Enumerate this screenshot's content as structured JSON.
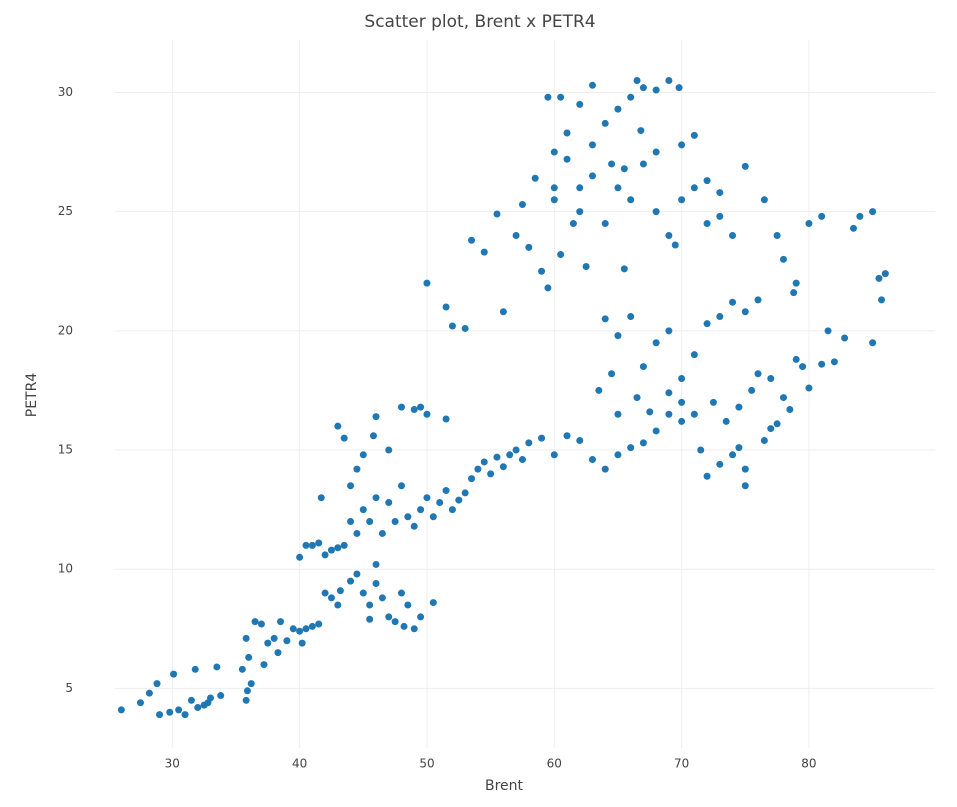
{
  "chart_data": {
    "type": "scatter",
    "title": "Scatter plot, Brent x PETR4",
    "x_label": "Brent",
    "y_label": "PETR4",
    "color": "#1f77b4",
    "grid": true,
    "xlim": [
      25.5,
      89.9
    ],
    "ylim": [
      2.5,
      32.2
    ],
    "xticks": [
      30,
      40,
      50,
      60,
      70,
      80
    ],
    "yticks": [
      5,
      10,
      15,
      20,
      25,
      30
    ],
    "x": [
      26,
      27.5,
      28.2,
      28.8,
      29,
      29.8,
      30.1,
      30.5,
      31,
      31.5,
      32,
      32.5,
      33,
      33.5,
      31.8,
      32.8,
      33.8,
      35.8,
      35.9,
      36.2,
      35.5,
      36,
      35.8,
      36.5,
      37,
      37.5,
      38,
      38.5,
      39,
      39.5,
      40,
      40.5,
      41,
      41.5,
      40.2,
      38.3,
      37.2,
      40,
      40.5,
      41,
      41.5,
      41.7,
      42,
      42.5,
      43,
      43.5,
      42,
      42.5,
      43,
      43.2,
      44,
      44.5,
      45,
      45.5,
      46,
      46.5,
      47,
      47.5,
      48,
      48.5,
      49,
      49.5,
      50.5,
      46,
      45.5,
      48.2,
      44,
      44.5,
      45,
      45.5,
      46,
      46.5,
      47,
      47.5,
      48,
      48.5,
      49,
      49.5,
      50,
      50.5,
      51,
      51.5,
      52,
      52.5,
      53,
      53.5,
      54,
      54.5,
      55,
      55.5,
      56,
      56.5,
      57,
      57.5,
      58,
      59,
      60,
      61,
      62,
      63,
      64,
      65,
      66,
      67,
      68,
      69,
      70,
      43,
      43.5,
      44,
      44.5,
      45,
      46,
      47,
      48,
      49,
      49.5,
      50,
      51.5,
      45.8,
      50,
      51.5,
      52,
      53,
      53.5,
      54.5,
      55.5,
      56,
      57,
      58,
      59,
      59.5,
      60,
      61,
      62,
      63,
      64,
      65,
      66,
      67,
      68,
      69,
      70,
      71,
      72,
      73,
      74,
      75,
      76.5,
      77.5,
      78,
      79,
      80,
      81,
      83.5,
      84,
      85,
      85.5,
      86,
      85.7,
      59.5,
      60.5,
      62,
      63,
      64,
      65,
      66,
      66.5,
      67,
      68,
      69,
      69.8,
      60,
      61,
      62,
      63,
      64.5,
      65.5,
      66.8,
      68,
      70,
      71,
      72,
      73,
      60.5,
      61.5,
      62.5,
      57.5,
      58.5,
      60,
      65.5,
      69.5,
      64,
      65,
      66,
      67,
      68,
      69,
      70,
      71,
      72,
      73,
      74,
      75,
      76,
      64.5,
      63.5,
      65,
      66.5,
      67.5,
      69,
      70,
      71,
      72.5,
      73.5,
      74.5,
      75.5,
      76,
      77,
      78,
      79,
      80,
      81,
      81.5,
      82,
      82.8,
      85,
      72,
      73,
      74,
      75,
      75,
      71.5,
      74.5,
      76.5,
      77.5,
      78.5,
      77,
      78.8,
      79.5
    ],
    "y": [
      4.1,
      4.4,
      4.8,
      5.2,
      3.9,
      4.0,
      5.6,
      4.1,
      3.9,
      4.5,
      4.2,
      4.3,
      4.6,
      5.9,
      5.8,
      4.4,
      4.7,
      4.5,
      4.9,
      5.2,
      5.8,
      6.3,
      7.1,
      7.8,
      7.7,
      6.9,
      7.1,
      7.8,
      7.0,
      7.5,
      7.4,
      7.5,
      7.6,
      7.7,
      6.9,
      6.5,
      6.0,
      10.5,
      11,
      11,
      11.1,
      13,
      10.6,
      10.8,
      10.9,
      11.0,
      9,
      8.8,
      8.5,
      9.1,
      9.5,
      9.8,
      9.0,
      8.5,
      9.4,
      8.8,
      8.0,
      7.8,
      9.0,
      8.5,
      7.5,
      8.0,
      8.6,
      10.2,
      7.9,
      7.6,
      12,
      11.5,
      12.5,
      12,
      13,
      11.5,
      12.8,
      12,
      13.5,
      12.2,
      11.8,
      12.5,
      13,
      12.2,
      12.8,
      13.3,
      12.5,
      12.9,
      13.2,
      13.8,
      14.2,
      14.5,
      14.0,
      14.7,
      14.3,
      14.8,
      15,
      14.6,
      15.3,
      15.5,
      14.8,
      15.6,
      15.4,
      14.6,
      14.2,
      14.8,
      15.1,
      15.3,
      15.8,
      16.5,
      16.2,
      16,
      15.5,
      13.5,
      14.2,
      14.8,
      16.4,
      15.0,
      16.8,
      16.7,
      16.8,
      16.5,
      16.3,
      15.6,
      22,
      21,
      20.2,
      20.1,
      23.8,
      23.3,
      24.9,
      20.8,
      24,
      23.5,
      22.5,
      21.8,
      26,
      27.2,
      25,
      26.5,
      24.5,
      26,
      25.5,
      27,
      25,
      24,
      25.5,
      26,
      24.5,
      25.8,
      24,
      26.9,
      25.5,
      24,
      23,
      22,
      24.5,
      24.8,
      24.3,
      24.8,
      25,
      22.2,
      22.4,
      21.3,
      29.8,
      29.8,
      29.5,
      30.3,
      28.7,
      29.3,
      29.8,
      30.5,
      30.2,
      30.1,
      30.5,
      30.2,
      27.5,
      28.3,
      26,
      27.8,
      27,
      26.8,
      28.4,
      27.5,
      27.8,
      28.2,
      26.3,
      24.8,
      23.2,
      24.5,
      22.7,
      25.3,
      26.4,
      25.5,
      22.6,
      23.6,
      20.5,
      19.8,
      20.6,
      18.5,
      19.5,
      20,
      18,
      19,
      20.3,
      20.6,
      21.2,
      20.8,
      21.3,
      18.2,
      17.5,
      16.5,
      17.2,
      16.6,
      17.4,
      17,
      16.5,
      17,
      16.2,
      16.8,
      17.5,
      18.2,
      18,
      17.2,
      18.8,
      17.6,
      18.6,
      20,
      18.7,
      19.7,
      19.5,
      13.9,
      14.4,
      14.8,
      13.5,
      14.2,
      15,
      15.1,
      15.4,
      16.1,
      16.7,
      15.9,
      21.6,
      18.5
    ]
  }
}
